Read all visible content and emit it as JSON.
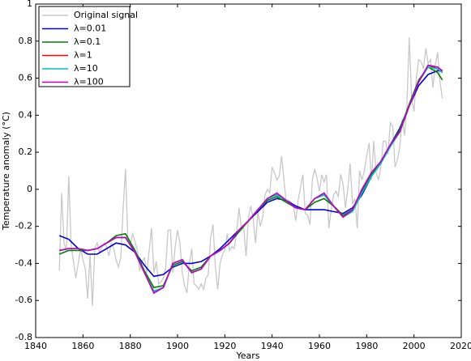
{
  "chart_data": {
    "type": "line",
    "xlabel": "Years",
    "ylabel": "Temperature anomaly (°C)",
    "xlim": [
      1840,
      2020
    ],
    "xticks": [
      1840,
      1860,
      1880,
      1900,
      1920,
      1940,
      1960,
      1980,
      2000,
      2020
    ],
    "ylim": [
      -0.8,
      1
    ],
    "yticks": [
      -0.8,
      -0.6,
      -0.4,
      -0.2,
      0,
      0.2,
      0.4,
      0.6,
      0.8,
      1
    ],
    "legend": "upper left",
    "series": [
      {
        "name": "Original signal",
        "color": "#c8c8c8",
        "x": [
          1850,
          1851,
          1852,
          1853,
          1854,
          1855,
          1856,
          1857,
          1858,
          1859,
          1860,
          1861,
          1862,
          1863,
          1864,
          1865,
          1866,
          1867,
          1868,
          1869,
          1870,
          1871,
          1872,
          1873,
          1874,
          1875,
          1876,
          1877,
          1878,
          1879,
          1880,
          1881,
          1882,
          1883,
          1884,
          1885,
          1886,
          1887,
          1888,
          1889,
          1890,
          1891,
          1892,
          1893,
          1894,
          1895,
          1896,
          1897,
          1898,
          1899,
          1900,
          1901,
          1902,
          1903,
          1904,
          1905,
          1906,
          1907,
          1908,
          1909,
          1910,
          1911,
          1912,
          1913,
          1914,
          1915,
          1916,
          1917,
          1918,
          1919,
          1920,
          1921,
          1922,
          1923,
          1924,
          1925,
          1926,
          1927,
          1928,
          1929,
          1930,
          1931,
          1932,
          1933,
          1934,
          1935,
          1936,
          1937,
          1938,
          1939,
          1940,
          1941,
          1942,
          1943,
          1944,
          1945,
          1946,
          1947,
          1948,
          1949,
          1950,
          1951,
          1952,
          1953,
          1954,
          1955,
          1956,
          1957,
          1958,
          1959,
          1960,
          1961,
          1962,
          1963,
          1964,
          1965,
          1966,
          1967,
          1968,
          1969,
          1970,
          1971,
          1972,
          1973,
          1974,
          1975,
          1976,
          1977,
          1978,
          1979,
          1980,
          1981,
          1982,
          1983,
          1984,
          1985,
          1986,
          1987,
          1988,
          1989,
          1990,
          1991,
          1992,
          1993,
          1994,
          1995,
          1996,
          1997,
          1998,
          1999,
          2000,
          2001,
          2002,
          2003,
          2004,
          2005,
          2006,
          2007,
          2008,
          2009,
          2010,
          2011,
          2012
        ],
        "values": [
          -0.44,
          -0.02,
          -0.29,
          -0.33,
          0.07,
          -0.3,
          -0.39,
          -0.48,
          -0.4,
          -0.32,
          -0.38,
          -0.43,
          -0.59,
          -0.35,
          -0.63,
          -0.32,
          -0.29,
          -0.34,
          -0.31,
          -0.29,
          -0.31,
          -0.36,
          -0.29,
          -0.32,
          -0.38,
          -0.42,
          -0.37,
          -0.1,
          0.11,
          -0.28,
          -0.3,
          -0.24,
          -0.28,
          -0.33,
          -0.44,
          -0.39,
          -0.37,
          -0.45,
          -0.33,
          -0.21,
          -0.45,
          -0.39,
          -0.51,
          -0.5,
          -0.48,
          -0.42,
          -0.22,
          -0.22,
          -0.45,
          -0.31,
          -0.22,
          -0.29,
          -0.45,
          -0.52,
          -0.56,
          -0.4,
          -0.32,
          -0.51,
          -0.52,
          -0.54,
          -0.51,
          -0.54,
          -0.48,
          -0.46,
          -0.26,
          -0.19,
          -0.42,
          -0.54,
          -0.4,
          -0.35,
          -0.33,
          -0.24,
          -0.33,
          -0.31,
          -0.32,
          -0.23,
          -0.1,
          -0.21,
          -0.21,
          -0.36,
          -0.15,
          -0.09,
          -0.16,
          -0.29,
          -0.12,
          -0.2,
          -0.15,
          -0.03,
          0.0,
          -0.02,
          0.12,
          0.09,
          0.05,
          0.07,
          0.18,
          0.05,
          -0.07,
          -0.06,
          -0.07,
          -0.09,
          -0.17,
          -0.06,
          0.01,
          0.08,
          -0.13,
          -0.14,
          -0.19,
          0.05,
          0.11,
          0.06,
          -0.01,
          0.08,
          0.04,
          0.08,
          -0.21,
          -0.11,
          -0.03,
          -0.01,
          -0.04,
          0.08,
          0.03,
          -0.1,
          0.0,
          0.14,
          -0.08,
          -0.05,
          -0.21,
          0.1,
          0.05,
          0.1,
          0.18,
          0.25,
          0.05,
          0.26,
          0.09,
          0.05,
          0.12,
          0.26,
          0.26,
          0.19,
          0.36,
          0.34,
          0.12,
          0.16,
          0.23,
          0.38,
          0.29,
          0.45,
          0.82,
          0.49,
          0.42,
          0.6,
          0.7,
          0.69,
          0.65,
          0.76,
          0.68,
          0.7,
          0.55,
          0.67,
          0.74,
          0.58,
          0.49
        ]
      },
      {
        "name": "λ=0.01",
        "color": "#0000e0",
        "x": [
          1850,
          1854,
          1858,
          1862,
          1866,
          1870,
          1874,
          1878,
          1882,
          1886,
          1890,
          1894,
          1898,
          1902,
          1906,
          1910,
          1914,
          1918,
          1922,
          1926,
          1930,
          1934,
          1938,
          1942,
          1946,
          1950,
          1954,
          1958,
          1962,
          1966,
          1970,
          1974,
          1978,
          1982,
          1986,
          1990,
          1994,
          1998,
          2002,
          2006,
          2010,
          2012
        ],
        "values": [
          -0.25,
          -0.27,
          -0.32,
          -0.35,
          -0.35,
          -0.32,
          -0.29,
          -0.3,
          -0.34,
          -0.41,
          -0.47,
          -0.46,
          -0.42,
          -0.4,
          -0.4,
          -0.39,
          -0.36,
          -0.32,
          -0.27,
          -0.22,
          -0.17,
          -0.12,
          -0.07,
          -0.05,
          -0.06,
          -0.09,
          -0.11,
          -0.11,
          -0.11,
          -0.12,
          -0.13,
          -0.1,
          -0.03,
          0.07,
          0.15,
          0.24,
          0.33,
          0.45,
          0.56,
          0.62,
          0.64,
          0.64
        ]
      },
      {
        "name": "λ=0.1",
        "color": "#008000",
        "x": [
          1850,
          1854,
          1858,
          1862,
          1866,
          1870,
          1874,
          1878,
          1882,
          1886,
          1890,
          1894,
          1898,
          1902,
          1906,
          1910,
          1914,
          1918,
          1922,
          1926,
          1930,
          1934,
          1938,
          1942,
          1946,
          1950,
          1954,
          1958,
          1962,
          1966,
          1970,
          1974,
          1978,
          1982,
          1986,
          1990,
          1994,
          1998,
          2002,
          2006,
          2010,
          2012
        ],
        "values": [
          -0.35,
          -0.33,
          -0.33,
          -0.33,
          -0.32,
          -0.29,
          -0.25,
          -0.24,
          -0.33,
          -0.44,
          -0.53,
          -0.52,
          -0.41,
          -0.39,
          -0.44,
          -0.42,
          -0.36,
          -0.33,
          -0.29,
          -0.23,
          -0.17,
          -0.11,
          -0.06,
          -0.04,
          -0.07,
          -0.1,
          -0.11,
          -0.07,
          -0.05,
          -0.09,
          -0.14,
          -0.11,
          -0.01,
          0.08,
          0.15,
          0.24,
          0.32,
          0.46,
          0.59,
          0.66,
          0.63,
          0.59
        ]
      },
      {
        "name": "λ=1",
        "color": "#ff0000",
        "x": [
          1850,
          1854,
          1858,
          1862,
          1866,
          1870,
          1874,
          1878,
          1882,
          1886,
          1890,
          1894,
          1898,
          1902,
          1906,
          1910,
          1914,
          1918,
          1922,
          1926,
          1930,
          1934,
          1938,
          1942,
          1946,
          1950,
          1954,
          1958,
          1962,
          1966,
          1970,
          1974,
          1978,
          1982,
          1986,
          1990,
          1994,
          1998,
          2002,
          2006,
          2010,
          2012
        ],
        "values": [
          -0.33,
          -0.32,
          -0.32,
          -0.33,
          -0.32,
          -0.29,
          -0.26,
          -0.26,
          -0.34,
          -0.45,
          -0.55,
          -0.53,
          -0.4,
          -0.38,
          -0.45,
          -0.43,
          -0.36,
          -0.33,
          -0.29,
          -0.22,
          -0.17,
          -0.11,
          -0.05,
          -0.03,
          -0.06,
          -0.1,
          -0.11,
          -0.05,
          -0.03,
          -0.09,
          -0.15,
          -0.11,
          0.0,
          0.09,
          0.15,
          0.24,
          0.31,
          0.45,
          0.58,
          0.67,
          0.65,
          0.63
        ]
      },
      {
        "name": "λ=10",
        "color": "#00bfbf",
        "x": [
          1850,
          1854,
          1858,
          1862,
          1866,
          1870,
          1874,
          1878,
          1882,
          1886,
          1890,
          1894,
          1898,
          1902,
          1906,
          1910,
          1914,
          1918,
          1922,
          1926,
          1930,
          1934,
          1938,
          1942,
          1946,
          1950,
          1954,
          1958,
          1962,
          1966,
          1970,
          1974,
          1978,
          1982,
          1986,
          1990,
          1994,
          1998,
          2002,
          2006,
          2010,
          2012
        ],
        "values": [
          -0.33,
          -0.32,
          -0.32,
          -0.33,
          -0.32,
          -0.29,
          -0.26,
          -0.26,
          -0.34,
          -0.45,
          -0.55,
          -0.53,
          -0.4,
          -0.38,
          -0.45,
          -0.43,
          -0.36,
          -0.33,
          -0.29,
          -0.22,
          -0.17,
          -0.11,
          -0.05,
          -0.03,
          -0.06,
          -0.1,
          -0.11,
          -0.05,
          -0.03,
          -0.09,
          -0.15,
          -0.12,
          -0.02,
          0.07,
          0.14,
          0.23,
          0.31,
          0.45,
          0.58,
          0.66,
          0.65,
          0.63
        ]
      },
      {
        "name": "λ=100",
        "color": "#bf00bf",
        "x": [
          1850,
          1854,
          1858,
          1862,
          1866,
          1870,
          1874,
          1878,
          1882,
          1886,
          1890,
          1894,
          1898,
          1902,
          1906,
          1910,
          1914,
          1918,
          1922,
          1926,
          1930,
          1934,
          1938,
          1942,
          1946,
          1950,
          1954,
          1958,
          1962,
          1966,
          1970,
          1974,
          1978,
          1982,
          1986,
          1990,
          1994,
          1998,
          2002,
          2006,
          2010,
          2012
        ],
        "values": [
          -0.33,
          -0.32,
          -0.32,
          -0.33,
          -0.32,
          -0.29,
          -0.26,
          -0.26,
          -0.34,
          -0.45,
          -0.56,
          -0.53,
          -0.4,
          -0.38,
          -0.45,
          -0.43,
          -0.36,
          -0.33,
          -0.29,
          -0.22,
          -0.17,
          -0.11,
          -0.05,
          -0.02,
          -0.06,
          -0.1,
          -0.11,
          -0.05,
          -0.02,
          -0.09,
          -0.15,
          -0.11,
          0.0,
          0.09,
          0.15,
          0.24,
          0.31,
          0.45,
          0.58,
          0.67,
          0.66,
          0.64
        ]
      }
    ]
  }
}
